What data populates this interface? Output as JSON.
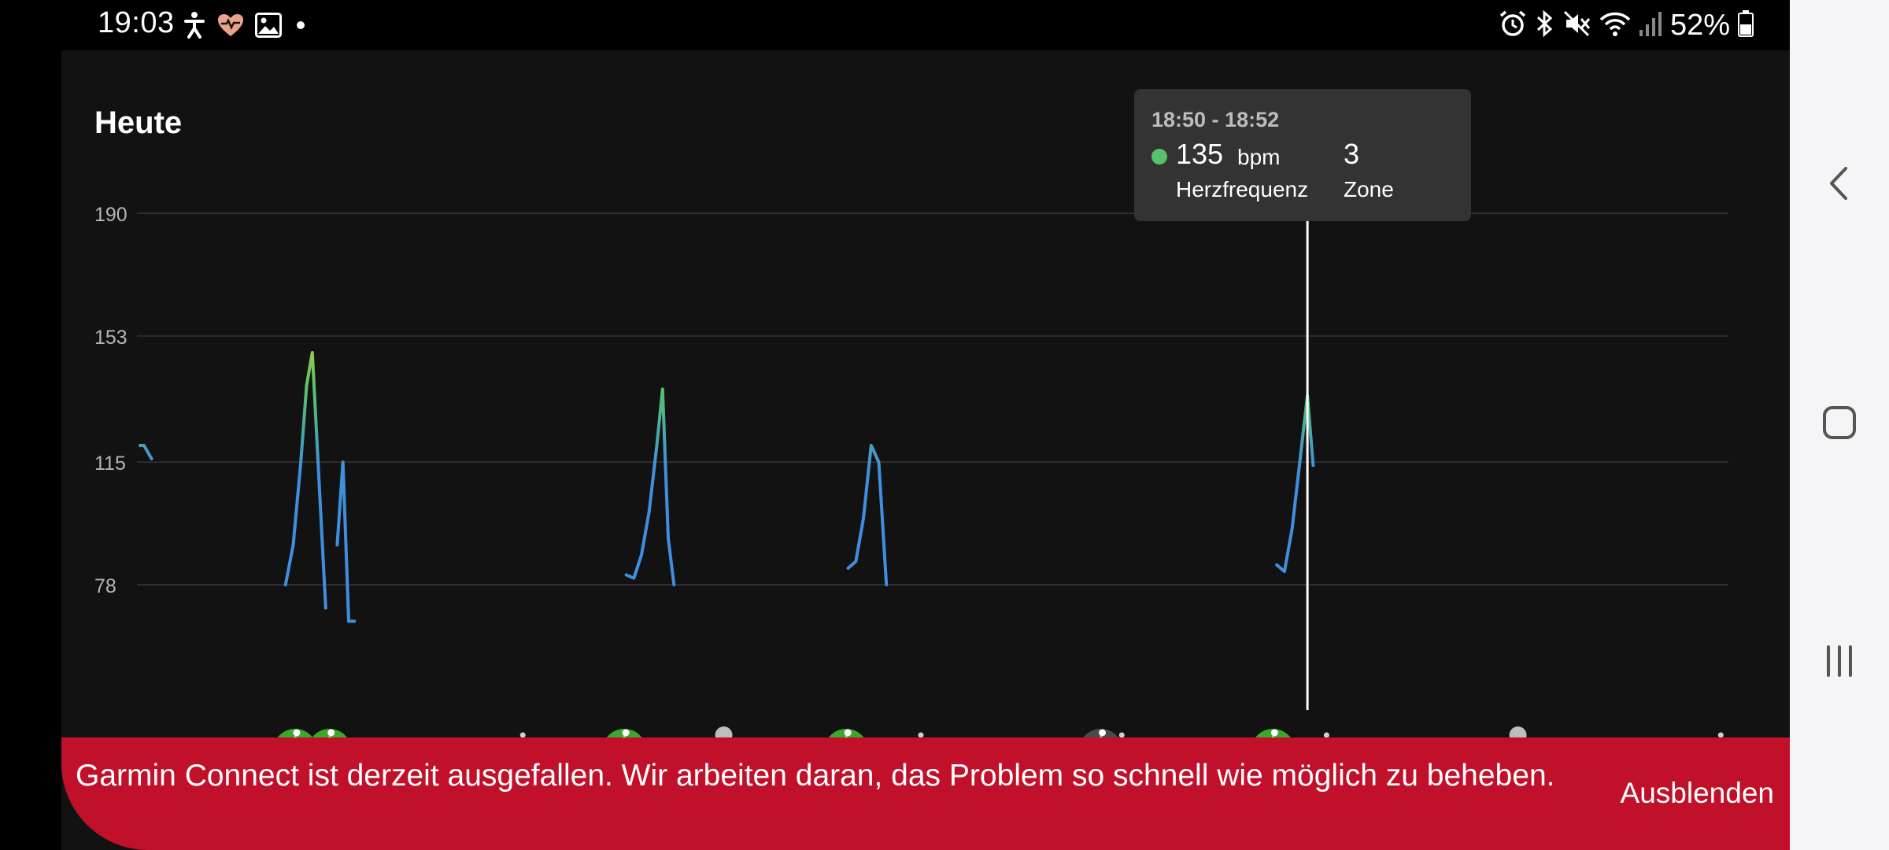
{
  "status_bar": {
    "time": "19:03",
    "battery": "52%",
    "left_icons": [
      "accessibility-icon",
      "heart-rate-icon",
      "gallery-icon",
      "notification-dot-icon"
    ],
    "right_icons": [
      "alarm-icon",
      "bluetooth-icon",
      "mute-icon",
      "wifi-icon",
      "signal-icon",
      "battery-icon"
    ]
  },
  "header": {
    "title": "Heute"
  },
  "chart_data": {
    "type": "line",
    "title": "Heute",
    "y_ticks": [
      "190",
      "153",
      "115",
      "78"
    ],
    "y_tick_values": [
      190,
      153,
      115,
      78
    ],
    "ylim": [
      40,
      200
    ],
    "grid": true,
    "line_color": "#3f8fe0",
    "peak_colors": [
      "#56c26a",
      "#a4c54e"
    ],
    "series": [
      {
        "segments": [
          [
            [
              0.0,
              120
            ],
            [
              1.0,
              120
            ],
            [
              3.0,
              116
            ]
          ],
          [
            [
              38.0,
              78
            ],
            [
              40.0,
              90
            ],
            [
              42.0,
              115
            ],
            [
              43.5,
              138
            ],
            [
              45.0,
              148
            ],
            [
              46.5,
              115
            ],
            [
              48.5,
              71
            ]
          ],
          [
            [
              51.5,
              90
            ],
            [
              53.0,
              115
            ],
            [
              54.5,
              67
            ],
            [
              56.0,
              67
            ]
          ],
          [
            [
              127.0,
              81
            ],
            [
              129.0,
              80
            ],
            [
              131.0,
              87
            ],
            [
              133.0,
              100
            ],
            [
              135.0,
              120
            ],
            [
              136.5,
              137
            ],
            [
              138.0,
              92
            ],
            [
              139.5,
              78
            ]
          ],
          [
            [
              185.0,
              83
            ],
            [
              187.0,
              85
            ],
            [
              189.0,
              98
            ],
            [
              191.0,
              120
            ],
            [
              193.0,
              115
            ],
            [
              195.0,
              78
            ]
          ],
          [
            [
              297.0,
              84
            ],
            [
              299.0,
              82
            ],
            [
              301.0,
              95
            ],
            [
              303.0,
              115
            ],
            [
              305.0,
              135
            ],
            [
              306.5,
              114
            ]
          ]
        ]
      }
    ],
    "activity_markers": [
      {
        "x": 40.5,
        "type": "walk",
        "color": "#3aa82a"
      },
      {
        "x": 49.5,
        "type": "walk",
        "color": "#3aa82a"
      },
      {
        "x": 126.5,
        "type": "walk",
        "color": "#3aa82a"
      },
      {
        "x": 184.5,
        "type": "walk",
        "color": "#3aa82a"
      },
      {
        "x": 251.0,
        "type": "walk",
        "color": "#4a4a4a"
      },
      {
        "x": 296.0,
        "type": "run",
        "color": "#3aa82a"
      }
    ],
    "dot_markers": [
      {
        "x": 100.0,
        "size": "small"
      },
      {
        "x": 152.5,
        "size": "large"
      },
      {
        "x": 204.0,
        "size": "small"
      },
      {
        "x": 256.5,
        "size": "small"
      },
      {
        "x": 310.0,
        "size": "small"
      },
      {
        "x": 360.0,
        "size": "large"
      },
      {
        "x": 413.0,
        "size": "small"
      }
    ],
    "cursor_x": 305.0,
    "tooltip": {
      "time_range": "18:50 - 18:52",
      "heart_rate": "135",
      "unit": "bpm",
      "heart_rate_label": "Herzfrequenz",
      "zone_value": "3",
      "zone_label": "Zone"
    }
  },
  "banner": {
    "message": "Garmin Connect ist derzeit ausgefallen. Wir arbeiten daran, das Problem so schnell wie möglich zu beheben.",
    "dismiss_label": "Ausblenden",
    "color": "#c0102a"
  },
  "nav_bar": {
    "buttons": [
      "back-icon",
      "home-icon",
      "recent-apps-icon"
    ]
  }
}
